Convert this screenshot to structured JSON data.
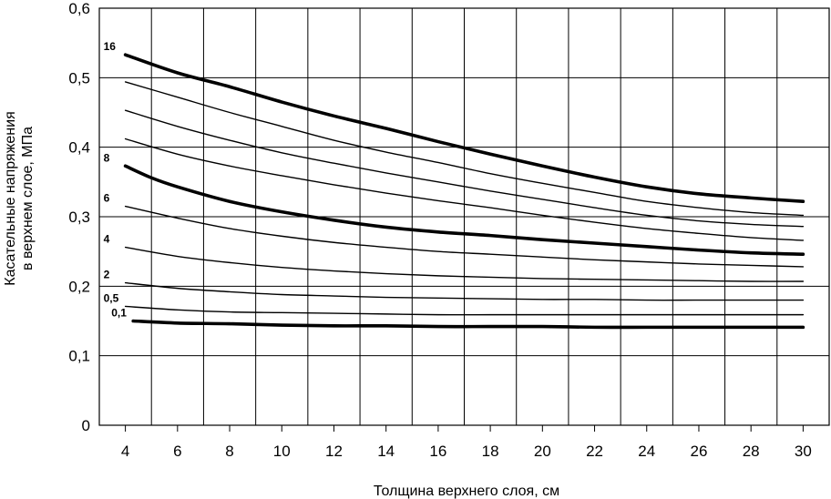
{
  "chart_data": {
    "type": "line",
    "title": "",
    "xlabel": "Толщина верхнего слоя, см",
    "ylabel_line1": "Касательные напряжения",
    "ylabel_line2": "в верхнем слое, МПа",
    "xlim": [
      3,
      31
    ],
    "ylim": [
      0,
      0.6
    ],
    "grid": true,
    "x_ticks": [
      4,
      6,
      8,
      10,
      12,
      14,
      16,
      18,
      20,
      22,
      24,
      26,
      28,
      30
    ],
    "x_tick_labels": [
      "4",
      "6",
      "8",
      "10",
      "12",
      "14",
      "16",
      "18",
      "20",
      "22",
      "24",
      "26",
      "28",
      "30"
    ],
    "y_ticks": [
      0,
      0.1,
      0.2,
      0.3,
      0.4,
      0.5,
      0.6
    ],
    "y_tick_labels": [
      "0",
      "0,1",
      "0,2",
      "0,3",
      "0,4",
      "0,5",
      "0,6"
    ],
    "series": [
      {
        "name": "16",
        "bold": true,
        "label": "16",
        "points": [
          [
            4,
            0.533
          ],
          [
            6,
            0.507
          ],
          [
            8,
            0.487
          ],
          [
            10,
            0.465
          ],
          [
            12,
            0.445
          ],
          [
            14,
            0.427
          ],
          [
            16,
            0.408
          ],
          [
            18,
            0.39
          ],
          [
            20,
            0.373
          ],
          [
            22,
            0.357
          ],
          [
            24,
            0.343
          ],
          [
            26,
            0.333
          ],
          [
            28,
            0.327
          ],
          [
            30,
            0.322
          ]
        ]
      },
      {
        "name": "",
        "bold": false,
        "label": "",
        "points": [
          [
            4,
            0.494
          ],
          [
            6,
            0.472
          ],
          [
            8,
            0.45
          ],
          [
            10,
            0.43
          ],
          [
            12,
            0.41
          ],
          [
            14,
            0.393
          ],
          [
            16,
            0.378
          ],
          [
            18,
            0.362
          ],
          [
            20,
            0.348
          ],
          [
            22,
            0.335
          ],
          [
            24,
            0.322
          ],
          [
            26,
            0.313
          ],
          [
            28,
            0.306
          ],
          [
            30,
            0.302
          ]
        ]
      },
      {
        "name": "",
        "bold": false,
        "label": "",
        "points": [
          [
            4,
            0.453
          ],
          [
            6,
            0.43
          ],
          [
            8,
            0.41
          ],
          [
            10,
            0.392
          ],
          [
            12,
            0.377
          ],
          [
            14,
            0.363
          ],
          [
            16,
            0.35
          ],
          [
            18,
            0.337
          ],
          [
            20,
            0.325
          ],
          [
            22,
            0.313
          ],
          [
            24,
            0.302
          ],
          [
            26,
            0.294
          ],
          [
            28,
            0.289
          ],
          [
            30,
            0.286
          ]
        ]
      },
      {
        "name": "",
        "bold": false,
        "label": "",
        "points": [
          [
            4,
            0.412
          ],
          [
            6,
            0.39
          ],
          [
            8,
            0.373
          ],
          [
            10,
            0.359
          ],
          [
            12,
            0.346
          ],
          [
            14,
            0.334
          ],
          [
            16,
            0.323
          ],
          [
            18,
            0.313
          ],
          [
            20,
            0.302
          ],
          [
            22,
            0.292
          ],
          [
            24,
            0.283
          ],
          [
            26,
            0.276
          ],
          [
            28,
            0.27
          ],
          [
            30,
            0.266
          ]
        ]
      },
      {
        "name": "8",
        "bold": true,
        "label": "8",
        "points": [
          [
            4,
            0.373
          ],
          [
            5,
            0.356
          ],
          [
            6,
            0.343
          ],
          [
            8,
            0.322
          ],
          [
            10,
            0.307
          ],
          [
            12,
            0.295
          ],
          [
            14,
            0.285
          ],
          [
            16,
            0.278
          ],
          [
            18,
            0.273
          ],
          [
            20,
            0.267
          ],
          [
            22,
            0.262
          ],
          [
            24,
            0.257
          ],
          [
            26,
            0.252
          ],
          [
            28,
            0.248
          ],
          [
            30,
            0.246
          ]
        ]
      },
      {
        "name": "6",
        "bold": false,
        "label": "6",
        "points": [
          [
            4,
            0.315
          ],
          [
            6,
            0.298
          ],
          [
            8,
            0.283
          ],
          [
            10,
            0.272
          ],
          [
            12,
            0.263
          ],
          [
            14,
            0.256
          ],
          [
            16,
            0.25
          ],
          [
            18,
            0.246
          ],
          [
            20,
            0.242
          ],
          [
            22,
            0.238
          ],
          [
            24,
            0.235
          ],
          [
            26,
            0.232
          ],
          [
            28,
            0.23
          ],
          [
            30,
            0.228
          ]
        ]
      },
      {
        "name": "4",
        "bold": false,
        "label": "4",
        "points": [
          [
            4,
            0.256
          ],
          [
            6,
            0.243
          ],
          [
            8,
            0.234
          ],
          [
            10,
            0.227
          ],
          [
            12,
            0.222
          ],
          [
            14,
            0.218
          ],
          [
            16,
            0.215
          ],
          [
            18,
            0.213
          ],
          [
            20,
            0.211
          ],
          [
            22,
            0.21
          ],
          [
            24,
            0.209
          ],
          [
            26,
            0.208
          ],
          [
            28,
            0.207
          ],
          [
            30,
            0.207
          ]
        ]
      },
      {
        "name": "2",
        "bold": false,
        "label": "2",
        "points": [
          [
            4,
            0.205
          ],
          [
            6,
            0.197
          ],
          [
            8,
            0.192
          ],
          [
            10,
            0.188
          ],
          [
            12,
            0.186
          ],
          [
            14,
            0.184
          ],
          [
            16,
            0.183
          ],
          [
            18,
            0.182
          ],
          [
            20,
            0.181
          ],
          [
            22,
            0.181
          ],
          [
            24,
            0.18
          ],
          [
            26,
            0.18
          ],
          [
            28,
            0.18
          ],
          [
            30,
            0.18
          ]
        ]
      },
      {
        "name": "0,5",
        "bold": false,
        "label": "0,5",
        "points": [
          [
            4,
            0.171
          ],
          [
            6,
            0.166
          ],
          [
            8,
            0.163
          ],
          [
            10,
            0.162
          ],
          [
            12,
            0.161
          ],
          [
            14,
            0.16
          ],
          [
            16,
            0.159
          ],
          [
            18,
            0.159
          ],
          [
            20,
            0.159
          ],
          [
            22,
            0.159
          ],
          [
            24,
            0.159
          ],
          [
            26,
            0.159
          ],
          [
            28,
            0.159
          ],
          [
            30,
            0.159
          ]
        ]
      },
      {
        "name": "0,1",
        "bold": true,
        "label": "0,1",
        "points": [
          [
            4.3,
            0.15
          ],
          [
            6,
            0.147
          ],
          [
            8,
            0.146
          ],
          [
            10,
            0.144
          ],
          [
            12,
            0.143
          ],
          [
            14,
            0.143
          ],
          [
            16,
            0.142
          ],
          [
            18,
            0.142
          ],
          [
            20,
            0.142
          ],
          [
            22,
            0.141
          ],
          [
            24,
            0.141
          ],
          [
            26,
            0.141
          ],
          [
            28,
            0.141
          ],
          [
            30,
            0.141
          ]
        ]
      }
    ]
  }
}
